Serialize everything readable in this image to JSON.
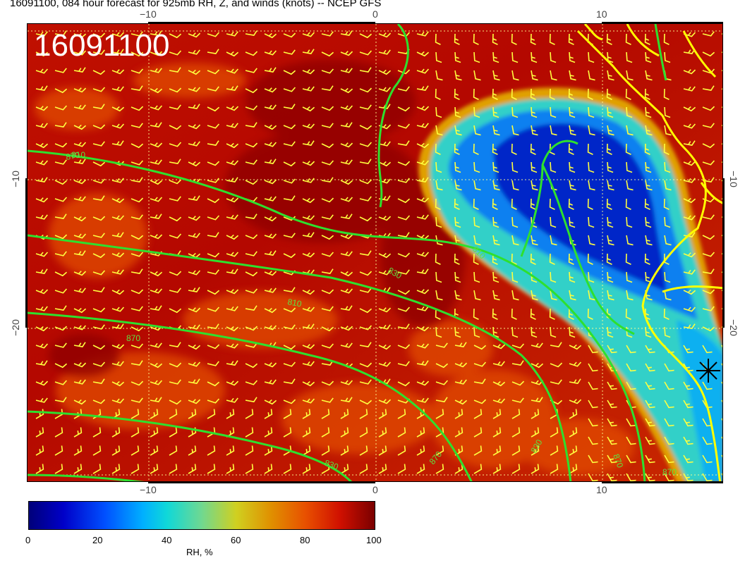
{
  "title": "16091100, 084 hour forecast for 925mb RH, Z, and winds (knots) -- NCEP GFS",
  "stamp": "16091100",
  "axes": {
    "top": [
      "−10",
      "0",
      "10"
    ],
    "bottom": [
      "−10",
      "0",
      "10"
    ],
    "left": [
      "−10",
      "−20"
    ],
    "right": [
      "−10",
      "−20"
    ]
  },
  "contours": {
    "labels": [
      "870",
      "830",
      "810",
      "870",
      "810",
      "830",
      "870",
      "830",
      "870",
      "810",
      "870"
    ]
  },
  "colorbar": {
    "ticks": [
      "0",
      "20",
      "40",
      "60",
      "80",
      "100"
    ],
    "title": "RH, %"
  },
  "colors": {
    "contour": "#2ee02e",
    "coast": "#ffff00",
    "barb": "#ffff40",
    "grid": "#ffff80",
    "moist": "#b81000",
    "dry": "#0020c0"
  },
  "marker_icon": "asterisk-marker"
}
